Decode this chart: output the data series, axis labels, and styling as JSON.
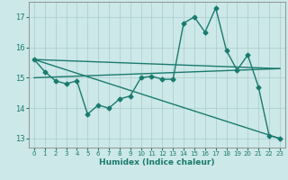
{
  "xlabel": "Humidex (Indice chaleur)",
  "ylabel": "",
  "bg_color": "#cce8e8",
  "grid_color": "#aacccc",
  "line_color": "#1a7a6e",
  "xlim": [
    -0.5,
    23.5
  ],
  "ylim": [
    12.7,
    17.5
  ],
  "xticks": [
    0,
    1,
    2,
    3,
    4,
    5,
    6,
    7,
    8,
    9,
    10,
    11,
    12,
    13,
    14,
    15,
    16,
    17,
    18,
    19,
    20,
    21,
    22,
    23
  ],
  "yticks": [
    13,
    14,
    15,
    16,
    17
  ],
  "series": [
    {
      "x": [
        0,
        1,
        2,
        3,
        4,
        5,
        6,
        7,
        8,
        9,
        10,
        11,
        12,
        13,
        14,
        15,
        16,
        17,
        18,
        19,
        20,
        21,
        22,
        23
      ],
      "y": [
        15.6,
        15.2,
        14.9,
        14.8,
        14.9,
        13.8,
        14.1,
        14.0,
        14.3,
        14.4,
        15.0,
        15.05,
        14.95,
        14.95,
        16.8,
        17.0,
        16.5,
        17.3,
        15.9,
        15.25,
        15.75,
        14.7,
        13.1,
        13.0
      ],
      "marker": "D",
      "markersize": 2.5,
      "linewidth": 1.0
    },
    {
      "x": [
        0,
        23
      ],
      "y": [
        15.6,
        15.3
      ],
      "marker": null,
      "markersize": 0,
      "linewidth": 1.0
    },
    {
      "x": [
        0,
        23
      ],
      "y": [
        15.6,
        13.0
      ],
      "marker": null,
      "markersize": 0,
      "linewidth": 1.0
    },
    {
      "x": [
        0,
        23
      ],
      "y": [
        15.0,
        15.3
      ],
      "marker": null,
      "markersize": 0,
      "linewidth": 1.0
    }
  ]
}
